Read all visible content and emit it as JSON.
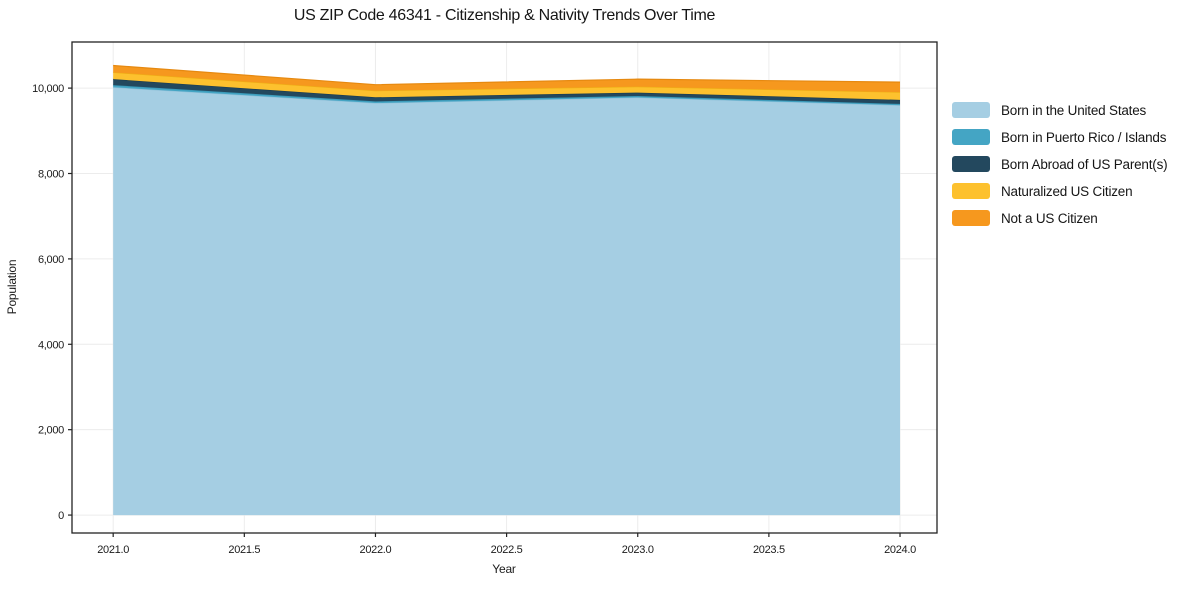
{
  "title": "US ZIP Code 46341 - Citizenship & Nativity Trends Over Time",
  "chart_data": {
    "type": "area",
    "stacked": true,
    "title": "US ZIP Code 46341 - Citizenship & Nativity Trends Over Time",
    "xlabel": "Year",
    "ylabel": "Population",
    "x": [
      2021,
      2022,
      2023,
      2024
    ],
    "series": [
      {
        "name": "Born in the United States",
        "color": "#a5cee3",
        "edge": "#8fc0d9",
        "values": [
          10020,
          9650,
          9780,
          9600
        ]
      },
      {
        "name": "Born in Puerto Rico / Islands",
        "color": "#44a5c4",
        "edge": "#3793b2",
        "values": [
          50,
          40,
          35,
          30
        ]
      },
      {
        "name": "Born Abroad of US Parent(s)",
        "color": "#23485e",
        "edge": "#1c3c4f",
        "values": [
          140,
          95,
          80,
          95
        ]
      },
      {
        "name": "Naturalized US Citizen",
        "color": "#fdc12e",
        "edge": "#eeae15",
        "values": [
          160,
          155,
          140,
          180
        ]
      },
      {
        "name": "Not a US Citizen",
        "color": "#f6981e",
        "edge": "#e68910",
        "values": [
          160,
          140,
          175,
          235
        ]
      }
    ],
    "totals": [
      10530,
      10080,
      10210,
      10140
    ],
    "xticks": [
      2021.0,
      2021.5,
      2022.0,
      2022.5,
      2023.0,
      2023.5,
      2024.0
    ],
    "yticks": [
      0,
      2000,
      4000,
      6000,
      8000,
      10000
    ],
    "xlim": [
      2020.843,
      2024.141
    ],
    "ylim": [
      -420,
      11080
    ],
    "grid": true,
    "grid_color": "#ececec",
    "frame_color": "#222222",
    "legend_position": "right"
  },
  "legend": {
    "items": [
      {
        "label": "Born in the United States"
      },
      {
        "label": "Born in Puerto Rico / Islands"
      },
      {
        "label": "Born Abroad of US Parent(s)"
      },
      {
        "label": "Naturalized US Citizen"
      },
      {
        "label": "Not a US Citizen"
      }
    ]
  }
}
